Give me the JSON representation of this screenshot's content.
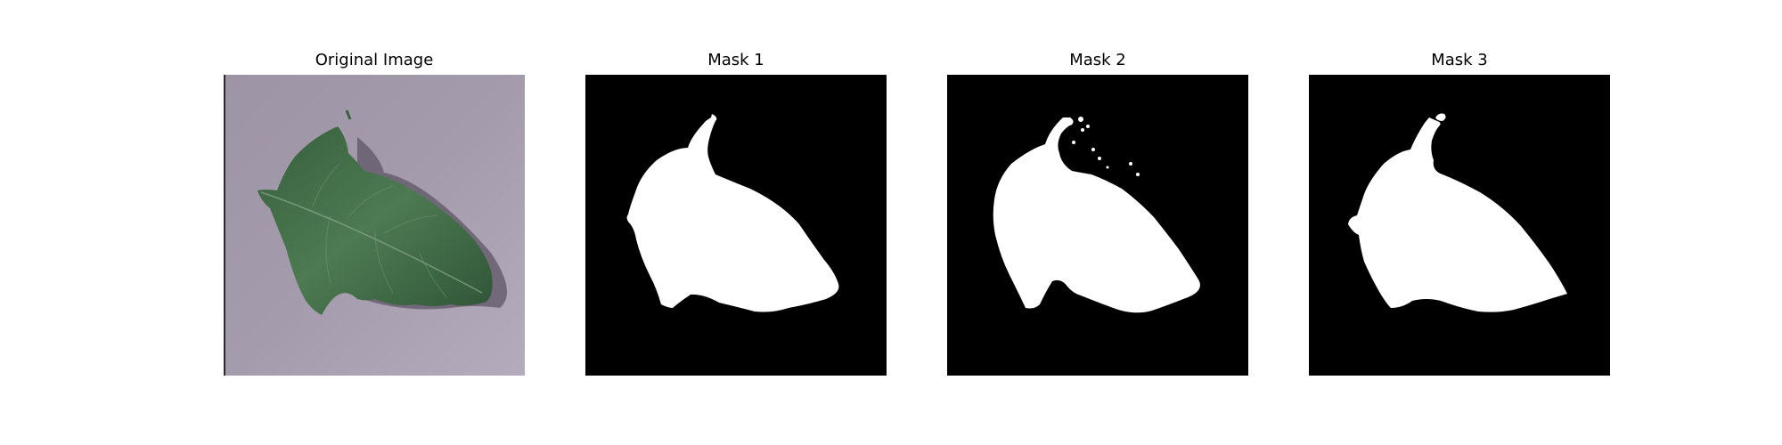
{
  "figure": {
    "panels": [
      {
        "title": "Original Image",
        "kind": "photo",
        "subject": "leaf-icon"
      },
      {
        "title": "Mask 1",
        "kind": "mask"
      },
      {
        "title": "Mask 2",
        "kind": "mask"
      },
      {
        "title": "Mask 3",
        "kind": "mask"
      }
    ],
    "colors": {
      "background": "#ffffff",
      "mask_foreground": "#ffffff",
      "mask_background": "#000000",
      "photo_background": "#9a92a2",
      "leaf": "#3f6a45"
    }
  }
}
